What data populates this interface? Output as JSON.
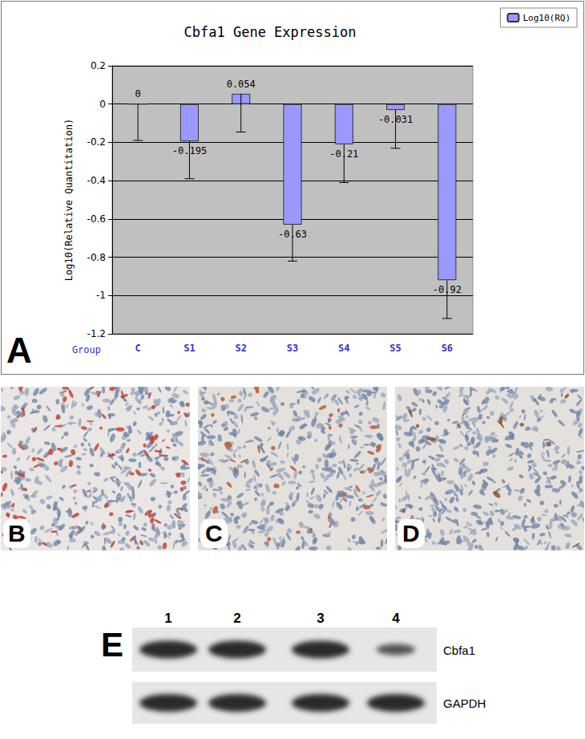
{
  "chart_data": {
    "type": "bar",
    "panel_label": "A",
    "title": "Cbfa1 Gene Expression",
    "ylabel": "Log10(Relative Quantitation)",
    "xlabel": "Group",
    "categories": [
      "C",
      "S1",
      "S2",
      "S3",
      "S4",
      "S5",
      "S6"
    ],
    "series": [
      {
        "name": "Log10(RQ)",
        "color": "#9999ff",
        "values": [
          0,
          -0.195,
          0.054,
          -0.63,
          -0.21,
          -0.031,
          -0.92
        ],
        "errors": [
          0.19,
          0.195,
          0.2,
          0.19,
          0.2,
          0.2,
          0.2
        ]
      }
    ],
    "ylim": [
      -1.2,
      0.2
    ],
    "yticks": [
      -1.2,
      -1,
      -0.8,
      -0.6,
      -0.4,
      -0.2,
      0,
      0.2
    ],
    "grid": true,
    "legend": "top-right",
    "data_labels": true
  },
  "images": [
    {
      "label": "B"
    },
    {
      "label": "C"
    },
    {
      "label": "D"
    }
  ],
  "blot": {
    "label": "E",
    "lanes": [
      "1",
      "2",
      "3",
      "4"
    ],
    "rows": [
      "Cbfa1",
      "GAPDH"
    ]
  }
}
